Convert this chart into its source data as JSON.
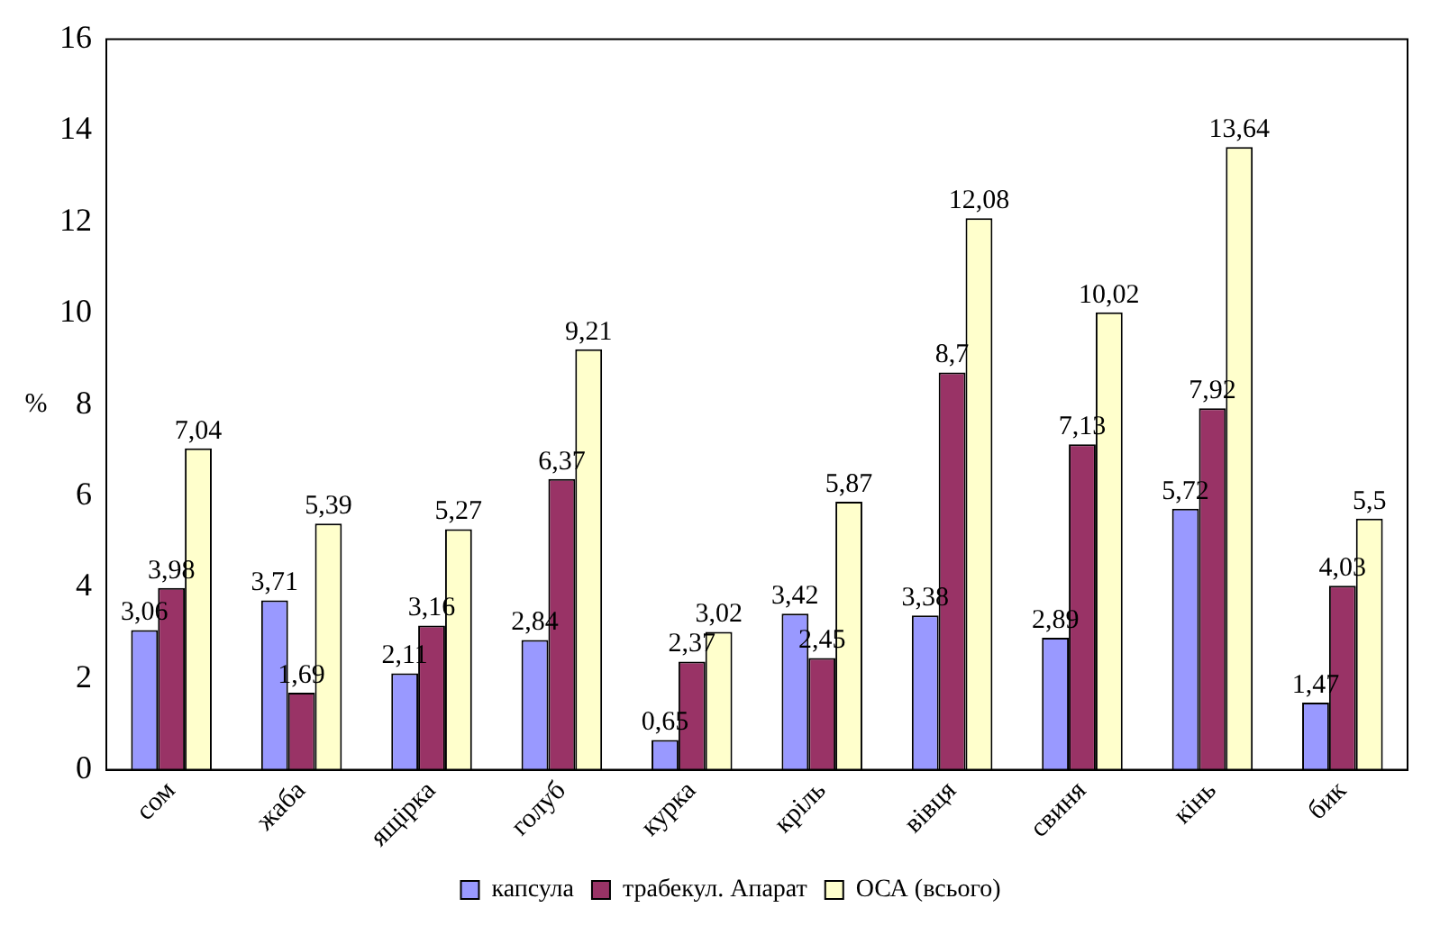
{
  "chart_data": {
    "type": "bar",
    "ylabel": "%",
    "categories": [
      "сом",
      "жаба",
      "ящірка",
      "голуб",
      "курка",
      "кріль",
      "вівця",
      "свиня",
      "кінь",
      "бик"
    ],
    "series": [
      {
        "name": "капсула",
        "color": "#9999ff",
        "values": [
          3.06,
          3.71,
          2.11,
          2.84,
          0.65,
          3.42,
          3.38,
          2.89,
          5.72,
          1.47
        ],
        "value_labels": [
          "3,06",
          "3,71",
          "2,11",
          "2,84",
          "0,65",
          "3,42",
          "3,38",
          "2,89",
          "5,72",
          "1,47"
        ]
      },
      {
        "name": "трабекул. Апарат",
        "color": "#993366",
        "values": [
          3.98,
          1.69,
          3.16,
          6.37,
          2.37,
          2.45,
          8.7,
          7.13,
          7.92,
          4.03
        ],
        "value_labels": [
          "3,98",
          "1,69",
          "3,16",
          "6,37",
          "2,37",
          "2,45",
          "8,7",
          "7,13",
          "7,92",
          "4,03"
        ]
      },
      {
        "name": "ОСА (всього)",
        "color": "#ffffcc",
        "values": [
          7.04,
          5.39,
          5.27,
          9.21,
          3.02,
          5.87,
          12.08,
          10.02,
          13.64,
          5.5
        ],
        "value_labels": [
          "7,04",
          "5,39",
          "5,27",
          "9,21",
          "3,02",
          "5,87",
          "12,08",
          "10,02",
          "13,64",
          "5,5"
        ]
      }
    ],
    "ylim": [
      0,
      16
    ],
    "yticks": [
      0,
      2,
      4,
      6,
      8,
      10,
      12,
      14,
      16
    ],
    "grid": false,
    "legend": "bottom"
  }
}
